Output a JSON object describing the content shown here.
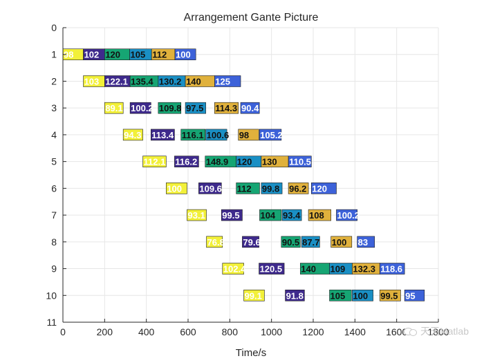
{
  "chart_data": {
    "type": "gantt",
    "title": "Arrangement Gante Picture",
    "xlabel": "Time/s",
    "ylabel": "",
    "xlim": [
      0,
      1800
    ],
    "ylim": [
      0,
      11
    ],
    "xticks": [
      0,
      200,
      400,
      600,
      800,
      1000,
      1200,
      1400,
      1600,
      1800
    ],
    "yticks": [
      0,
      1,
      2,
      3,
      4,
      5,
      6,
      7,
      8,
      9,
      10,
      11
    ],
    "grid": true,
    "colors": {
      "stage1": "#f2f039",
      "stage2": "#3e2a8c",
      "stage3": "#16a573",
      "stage4": "#1a8fc4",
      "stage5": "#e0b13c",
      "stage6": "#3d62d9"
    },
    "tasks": [
      {
        "row": 1,
        "start": 0,
        "end": 98,
        "label": "98",
        "stage": "stage1"
      },
      {
        "row": 1,
        "start": 98,
        "end": 200,
        "label": "102",
        "stage": "stage2"
      },
      {
        "row": 1,
        "start": 200,
        "end": 320,
        "label": "120",
        "stage": "stage3"
      },
      {
        "row": 1,
        "start": 320,
        "end": 425,
        "label": "105",
        "stage": "stage4"
      },
      {
        "row": 1,
        "start": 425,
        "end": 537,
        "label": "112",
        "stage": "stage5"
      },
      {
        "row": 1,
        "start": 537,
        "end": 637,
        "label": "100",
        "stage": "stage6"
      },
      {
        "row": 2,
        "start": 98,
        "end": 200,
        "label": "103",
        "stage": "stage1"
      },
      {
        "row": 2,
        "start": 200,
        "end": 322,
        "label": "122.1",
        "stage": "stage2"
      },
      {
        "row": 2,
        "start": 322,
        "end": 457,
        "label": "135.4",
        "stage": "stage3"
      },
      {
        "row": 2,
        "start": 457,
        "end": 587,
        "label": "130.2",
        "stage": "stage4"
      },
      {
        "row": 2,
        "start": 587,
        "end": 727,
        "label": "140",
        "stage": "stage5"
      },
      {
        "row": 2,
        "start": 727,
        "end": 852,
        "label": "125",
        "stage": "stage6"
      },
      {
        "row": 3,
        "start": 200,
        "end": 289,
        "label": "89.1",
        "stage": "stage1"
      },
      {
        "row": 3,
        "start": 322,
        "end": 422,
        "label": "100.2",
        "stage": "stage2"
      },
      {
        "row": 3,
        "start": 457,
        "end": 566,
        "label": "109.8",
        "stage": "stage3"
      },
      {
        "row": 3,
        "start": 587,
        "end": 685,
        "label": "97.5",
        "stage": "stage4"
      },
      {
        "row": 3,
        "start": 727,
        "end": 841,
        "label": "114.3",
        "stage": "stage5"
      },
      {
        "row": 3,
        "start": 852,
        "end": 942,
        "label": "90.4",
        "stage": "stage6"
      },
      {
        "row": 4,
        "start": 289,
        "end": 383,
        "label": "94.3",
        "stage": "stage1"
      },
      {
        "row": 4,
        "start": 422,
        "end": 535,
        "label": "113.4",
        "stage": "stage2"
      },
      {
        "row": 4,
        "start": 566,
        "end": 682,
        "label": "116.1",
        "stage": "stage3"
      },
      {
        "row": 4,
        "start": 685,
        "end": 786,
        "label": "100.6",
        "stage": "stage4"
      },
      {
        "row": 4,
        "start": 841,
        "end": 939,
        "label": "98",
        "stage": "stage5"
      },
      {
        "row": 4,
        "start": 942,
        "end": 1047,
        "label": "105.2",
        "stage": "stage6"
      },
      {
        "row": 5,
        "start": 383,
        "end": 495,
        "label": "112.1",
        "stage": "stage1"
      },
      {
        "row": 5,
        "start": 535,
        "end": 651,
        "label": "116.2",
        "stage": "stage2"
      },
      {
        "row": 5,
        "start": 682,
        "end": 831,
        "label": "148.9",
        "stage": "stage3"
      },
      {
        "row": 5,
        "start": 831,
        "end": 951,
        "label": "120",
        "stage": "stage4"
      },
      {
        "row": 5,
        "start": 951,
        "end": 1081,
        "label": "130",
        "stage": "stage5"
      },
      {
        "row": 5,
        "start": 1081,
        "end": 1191,
        "label": "110.5",
        "stage": "stage6"
      },
      {
        "row": 6,
        "start": 495,
        "end": 595,
        "label": "100",
        "stage": "stage1"
      },
      {
        "row": 6,
        "start": 651,
        "end": 760,
        "label": "109.6",
        "stage": "stage2"
      },
      {
        "row": 6,
        "start": 831,
        "end": 943,
        "label": "112",
        "stage": "stage3"
      },
      {
        "row": 6,
        "start": 951,
        "end": 1051,
        "label": "99.8",
        "stage": "stage4"
      },
      {
        "row": 6,
        "start": 1081,
        "end": 1177,
        "label": "96.2",
        "stage": "stage5"
      },
      {
        "row": 6,
        "start": 1191,
        "end": 1311,
        "label": "120",
        "stage": "stage6"
      },
      {
        "row": 7,
        "start": 595,
        "end": 688,
        "label": "93.1",
        "stage": "stage1"
      },
      {
        "row": 7,
        "start": 760,
        "end": 860,
        "label": "99.5",
        "stage": "stage2"
      },
      {
        "row": 7,
        "start": 943,
        "end": 1047,
        "label": "104",
        "stage": "stage3"
      },
      {
        "row": 7,
        "start": 1051,
        "end": 1144,
        "label": "93.4",
        "stage": "stage4"
      },
      {
        "row": 7,
        "start": 1177,
        "end": 1285,
        "label": "108",
        "stage": "stage5"
      },
      {
        "row": 7,
        "start": 1311,
        "end": 1411,
        "label": "100.2",
        "stage": "stage6"
      },
      {
        "row": 8,
        "start": 688,
        "end": 765,
        "label": "76.8",
        "stage": "stage1"
      },
      {
        "row": 8,
        "start": 860,
        "end": 940,
        "label": "79.6",
        "stage": "stage2"
      },
      {
        "row": 8,
        "start": 1047,
        "end": 1138,
        "label": "90.5",
        "stage": "stage3"
      },
      {
        "row": 8,
        "start": 1144,
        "end": 1231,
        "label": "87.7",
        "stage": "stage4"
      },
      {
        "row": 8,
        "start": 1285,
        "end": 1385,
        "label": "100",
        "stage": "stage5"
      },
      {
        "row": 8,
        "start": 1411,
        "end": 1494,
        "label": "83",
        "stage": "stage6"
      },
      {
        "row": 9,
        "start": 765,
        "end": 867,
        "label": "102.4",
        "stage": "stage1"
      },
      {
        "row": 9,
        "start": 940,
        "end": 1061,
        "label": "120.5",
        "stage": "stage2"
      },
      {
        "row": 9,
        "start": 1138,
        "end": 1278,
        "label": "140",
        "stage": "stage3"
      },
      {
        "row": 9,
        "start": 1278,
        "end": 1387,
        "label": "109",
        "stage": "stage4"
      },
      {
        "row": 9,
        "start": 1387,
        "end": 1519,
        "label": "132.3",
        "stage": "stage5"
      },
      {
        "row": 9,
        "start": 1519,
        "end": 1638,
        "label": "118.6",
        "stage": "stage6"
      },
      {
        "row": 10,
        "start": 867,
        "end": 966,
        "label": "99.1",
        "stage": "stage1"
      },
      {
        "row": 10,
        "start": 1066,
        "end": 1158,
        "label": "91.8",
        "stage": "stage2"
      },
      {
        "row": 10,
        "start": 1278,
        "end": 1383,
        "label": "105",
        "stage": "stage3"
      },
      {
        "row": 10,
        "start": 1387,
        "end": 1487,
        "label": "100",
        "stage": "stage4"
      },
      {
        "row": 10,
        "start": 1519,
        "end": 1619,
        "label": "99.5",
        "stage": "stage5"
      },
      {
        "row": 10,
        "start": 1638,
        "end": 1733,
        "label": "95",
        "stage": "stage6"
      }
    ]
  },
  "watermark": {
    "icon": "wechat-icon",
    "text": "天天Matlab"
  }
}
